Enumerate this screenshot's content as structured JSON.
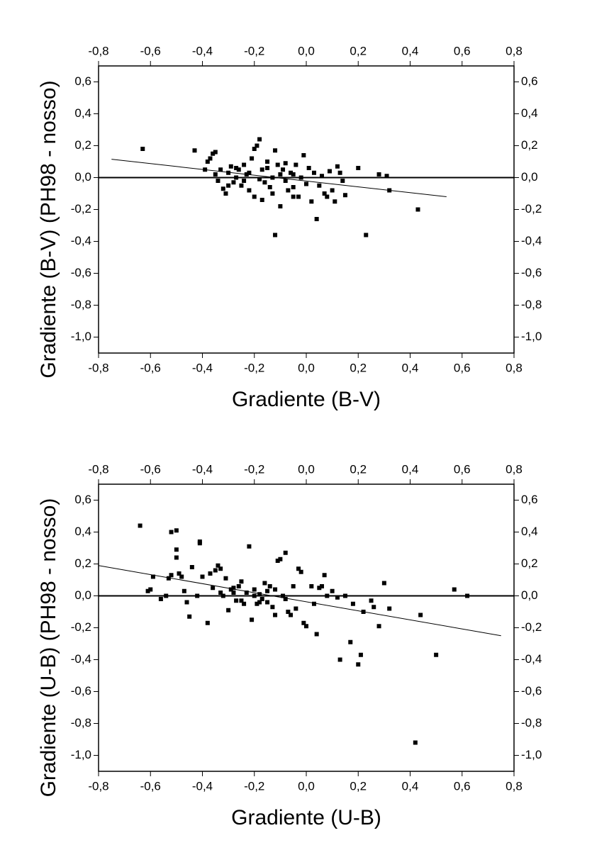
{
  "chart_data": [
    {
      "type": "scatter",
      "x_label": "Gradiente (B-V)",
      "y_label": "Gradiente (B-V) (PH98 - nosso)",
      "color": "#000000",
      "xlim": [
        -0.8,
        0.8
      ],
      "ylim": [
        -1.1,
        0.7
      ],
      "xticks": [
        {
          "value": -0.8,
          "label": "-0,8"
        },
        {
          "value": -0.6,
          "label": "-0,6"
        },
        {
          "value": -0.4,
          "label": "-0,4"
        },
        {
          "value": -0.2,
          "label": "-0,2"
        },
        {
          "value": 0,
          "label": "0,0"
        },
        {
          "value": 0.2,
          "label": "0,2"
        },
        {
          "value": 0.4,
          "label": "0,4"
        },
        {
          "value": 0.6,
          "label": "0,6"
        },
        {
          "value": 0.8,
          "label": "0,8"
        }
      ],
      "yticks": [
        {
          "value": -1.0,
          "label": "-1,0"
        },
        {
          "value": -0.8,
          "label": "-0,8"
        },
        {
          "value": -0.6,
          "label": "-0,6"
        },
        {
          "value": -0.4,
          "label": "-0,4"
        },
        {
          "value": -0.2,
          "label": "-0,2"
        },
        {
          "value": 0,
          "label": "0,0"
        },
        {
          "value": 0.2,
          "label": "0,2"
        },
        {
          "value": 0.4,
          "label": "0,4"
        },
        {
          "value": 0.6,
          "label": "0,6"
        }
      ],
      "reference_line": 0,
      "fit_line": {
        "x": [
          -0.75,
          0.54
        ],
        "y": [
          0.115,
          -0.12
        ]
      },
      "x": [
        -0.63,
        -0.43,
        -0.39,
        -0.38,
        -0.37,
        -0.36,
        -0.35,
        -0.35,
        -0.34,
        -0.33,
        -0.32,
        -0.31,
        -0.3,
        -0.29,
        -0.28,
        -0.27,
        -0.26,
        -0.25,
        -0.24,
        -0.23,
        -0.22,
        -0.21,
        -0.2,
        -0.19,
        -0.18,
        -0.17,
        -0.16,
        -0.15,
        -0.14,
        -0.13,
        -0.12,
        -0.12,
        -0.11,
        -0.1,
        -0.09,
        -0.08,
        -0.07,
        -0.06,
        -0.05,
        -0.04,
        -0.03,
        -0.02,
        -0.01,
        0.0,
        0.01,
        0.02,
        0.03,
        0.04,
        0.05,
        0.06,
        0.07,
        0.08,
        0.09,
        0.1,
        0.11,
        0.12,
        0.13,
        0.14,
        0.15,
        0.2,
        0.23,
        0.28,
        0.31,
        0.32,
        0.43,
        -0.3,
        -0.27,
        -0.22,
        -0.18,
        -0.15,
        -0.13,
        -0.1,
        -0.08,
        -0.05,
        -0.2,
        -0.17,
        -0.24,
        -0.05
      ],
      "y": [
        0.18,
        0.17,
        0.05,
        0.1,
        0.12,
        0.15,
        0.16,
        0.02,
        -0.02,
        0.05,
        -0.07,
        -0.1,
        0.03,
        0.07,
        -0.03,
        0.0,
        0.05,
        -0.05,
        0.08,
        0.02,
        -0.08,
        0.12,
        0.18,
        0.2,
        0.24,
        0.05,
        -0.03,
        0.1,
        -0.06,
        0.0,
        0.17,
        -0.36,
        0.08,
        -0.18,
        0.05,
        -0.02,
        -0.08,
        0.03,
        -0.06,
        0.08,
        -0.12,
        0.0,
        0.14,
        -0.04,
        0.06,
        -0.15,
        0.03,
        -0.26,
        -0.05,
        0.01,
        -0.1,
        -0.12,
        0.04,
        -0.08,
        -0.15,
        0.07,
        0.03,
        -0.02,
        -0.11,
        0.06,
        -0.36,
        0.02,
        0.01,
        -0.08,
        -0.2,
        -0.05,
        0.06,
        0.03,
        -0.01,
        0.06,
        -0.1,
        0.02,
        0.09,
        0.02,
        -0.12,
        -0.14,
        -0.02,
        -0.12
      ]
    },
    {
      "type": "scatter",
      "x_label": "Gradiente (U-B)",
      "y_label": "Gradiente (U-B) (PH98 - nosso)",
      "color": "#000000",
      "xlim": [
        -0.8,
        0.8
      ],
      "ylim": [
        -1.1,
        0.7
      ],
      "xticks": [
        {
          "value": -0.8,
          "label": "-0,8"
        },
        {
          "value": -0.6,
          "label": "-0,6"
        },
        {
          "value": -0.4,
          "label": "-0,4"
        },
        {
          "value": -0.2,
          "label": "-0,2"
        },
        {
          "value": 0,
          "label": "0,0"
        },
        {
          "value": 0.2,
          "label": "0,2"
        },
        {
          "value": 0.4,
          "label": "0,4"
        },
        {
          "value": 0.6,
          "label": "0,6"
        },
        {
          "value": 0.8,
          "label": "0,8"
        }
      ],
      "yticks": [
        {
          "value": -1.0,
          "label": "-1,0"
        },
        {
          "value": -0.8,
          "label": "-0,8"
        },
        {
          "value": -0.6,
          "label": "-0,6"
        },
        {
          "value": -0.4,
          "label": "-0,4"
        },
        {
          "value": -0.2,
          "label": "-0,2"
        },
        {
          "value": 0,
          "label": "0,0"
        },
        {
          "value": 0.2,
          "label": "0,2"
        },
        {
          "value": 0.4,
          "label": "0,4"
        },
        {
          "value": 0.6,
          "label": "0,6"
        }
      ],
      "reference_line": 0,
      "fit_line": {
        "x": [
          -0.8,
          0.75
        ],
        "y": [
          0.19,
          -0.25
        ]
      },
      "x": [
        -0.64,
        -0.61,
        -0.6,
        -0.59,
        -0.56,
        -0.54,
        -0.53,
        -0.52,
        -0.52,
        -0.5,
        -0.5,
        -0.5,
        -0.49,
        -0.48,
        -0.47,
        -0.46,
        -0.45,
        -0.44,
        -0.42,
        -0.41,
        -0.41,
        -0.4,
        -0.38,
        -0.37,
        -0.36,
        -0.35,
        -0.34,
        -0.33,
        -0.32,
        -0.31,
        -0.3,
        -0.29,
        -0.28,
        -0.27,
        -0.26,
        -0.25,
        -0.24,
        -0.23,
        -0.22,
        -0.21,
        -0.2,
        -0.19,
        -0.18,
        -0.17,
        -0.16,
        -0.15,
        -0.14,
        -0.13,
        -0.12,
        -0.11,
        -0.1,
        -0.09,
        -0.08,
        -0.07,
        -0.06,
        -0.05,
        -0.04,
        -0.03,
        -0.02,
        -0.01,
        0.0,
        0.02,
        0.03,
        0.04,
        0.05,
        0.06,
        0.07,
        0.08,
        0.1,
        0.12,
        0.13,
        0.15,
        0.17,
        0.18,
        0.2,
        0.21,
        0.22,
        0.25,
        0.26,
        0.28,
        0.3,
        0.32,
        0.42,
        0.44,
        0.5,
        0.57,
        0.62,
        -0.25,
        -0.18,
        -0.12,
        -0.08,
        -0.2,
        -0.15,
        -0.33,
        -0.28
      ],
      "y": [
        0.44,
        0.03,
        0.04,
        0.12,
        -0.02,
        0.0,
        0.11,
        0.4,
        0.13,
        0.41,
        0.29,
        0.24,
        0.14,
        0.12,
        0.03,
        -0.04,
        -0.13,
        0.18,
        0.0,
        0.33,
        0.34,
        0.12,
        -0.17,
        0.14,
        0.05,
        0.16,
        0.19,
        0.17,
        0.0,
        0.11,
        -0.09,
        0.04,
        0.02,
        -0.03,
        0.06,
        0.09,
        -0.05,
        0.02,
        0.31,
        -0.15,
        0.04,
        -0.05,
        0.01,
        -0.02,
        0.08,
        0.03,
        0.06,
        -0.07,
        -0.12,
        0.22,
        0.23,
        0.0,
        0.27,
        -0.1,
        -0.12,
        0.06,
        -0.08,
        0.17,
        0.15,
        -0.17,
        -0.19,
        0.06,
        -0.05,
        -0.24,
        0.05,
        0.06,
        0.13,
        0.0,
        0.03,
        -0.01,
        -0.4,
        0.0,
        -0.29,
        -0.05,
        -0.43,
        -0.37,
        -0.1,
        -0.03,
        -0.07,
        -0.19,
        0.08,
        -0.08,
        -0.92,
        -0.12,
        -0.37,
        0.04,
        0.0,
        -0.03,
        -0.04,
        0.04,
        -0.02,
        0.0,
        -0.04,
        0.02,
        0.05
      ]
    }
  ]
}
